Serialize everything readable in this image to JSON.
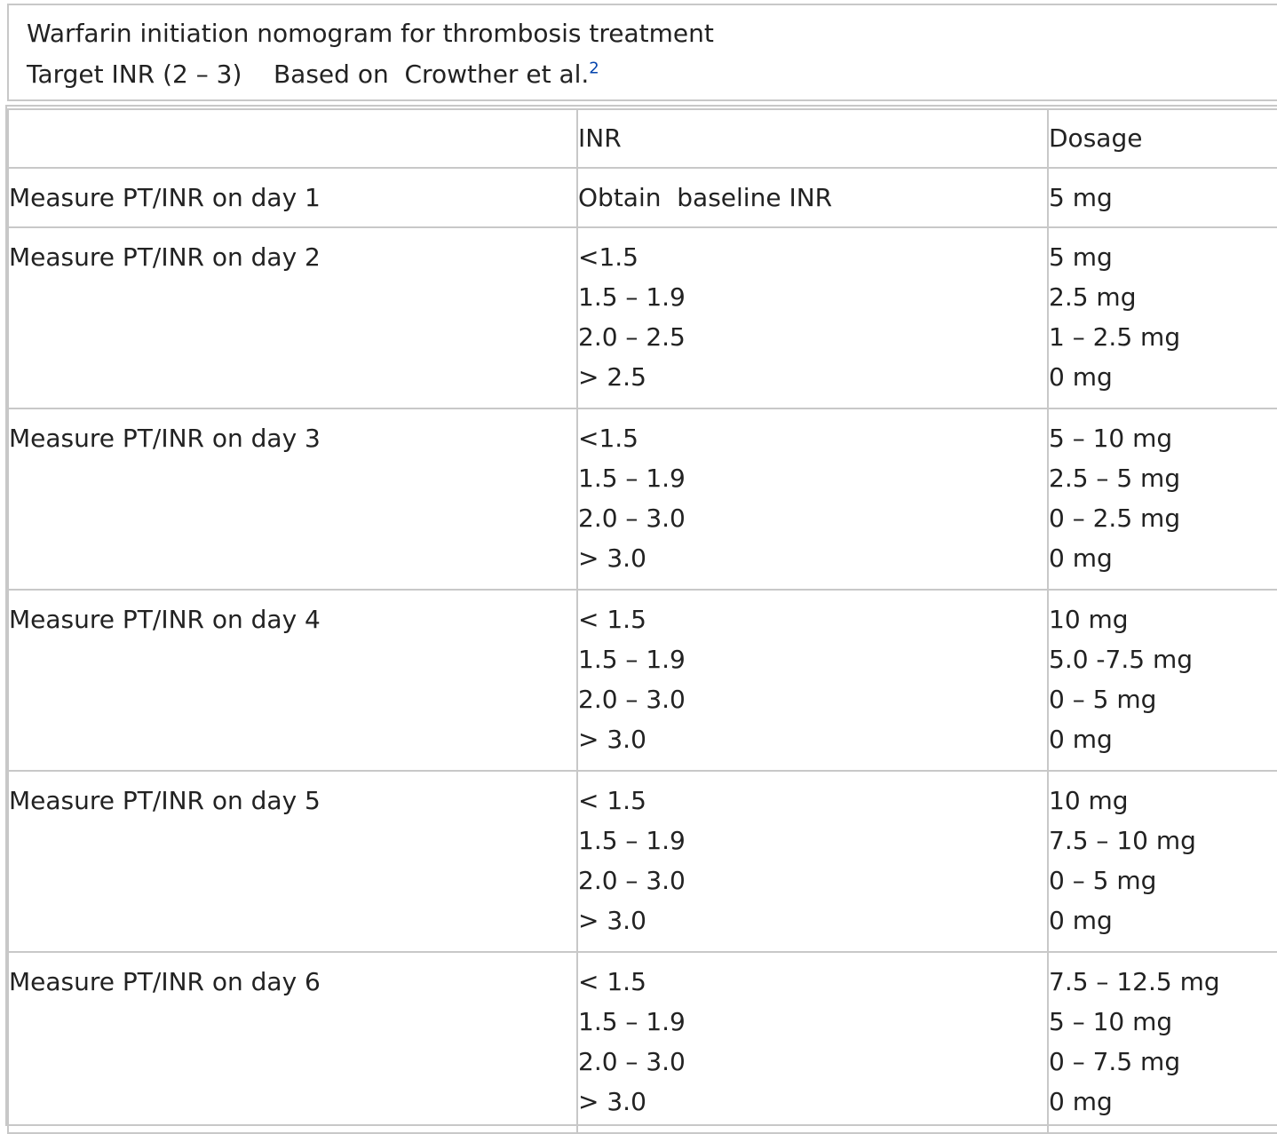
{
  "caption": {
    "title": "Warfarin initiation nomogram for thrombosis treatment",
    "subtitle": "Target INR (2 – 3)    Based on  Crowther et al.",
    "citation_mark": "2"
  },
  "table": {
    "headers": {
      "step": "",
      "inr": "INR",
      "dosage": "Dosage"
    },
    "rows": [
      {
        "step": "Measure PT/INR on day 1",
        "inr": [
          "Obtain  baseline INR"
        ],
        "dosage": [
          "5 mg"
        ]
      },
      {
        "step": "Measure PT/INR on day 2",
        "inr": [
          "<1.5",
          "1.5 – 1.9",
          "2.0 – 2.5",
          "> 2.5"
        ],
        "dosage": [
          "5 mg",
          "2.5 mg",
          "1 – 2.5 mg",
          "0 mg"
        ]
      },
      {
        "step": "Measure PT/INR on day 3",
        "inr": [
          "<1.5",
          "1.5 – 1.9",
          "2.0 – 3.0",
          "> 3.0"
        ],
        "dosage": [
          "5 – 10 mg",
          "2.5 – 5 mg",
          "0 – 2.5 mg",
          "0 mg"
        ]
      },
      {
        "step": "Measure PT/INR on day 4",
        "inr": [
          "< 1.5",
          "1.5 – 1.9",
          "2.0 – 3.0",
          "> 3.0"
        ],
        "dosage": [
          "10 mg",
          "5.0 -7.5 mg",
          "0 – 5 mg",
          "0 mg"
        ]
      },
      {
        "step": "Measure PT/INR on day 5",
        "inr": [
          "< 1.5",
          "1.5 – 1.9",
          "2.0 – 3.0",
          "> 3.0"
        ],
        "dosage": [
          "10 mg",
          "7.5 – 10 mg",
          "0 – 5 mg",
          "0 mg"
        ]
      },
      {
        "step": "Measure PT/INR on day 6",
        "inr": [
          "< 1.5",
          "1.5 – 1.9",
          "2.0 – 3.0",
          "> 3.0"
        ],
        "dosage": [
          "7.5 – 12.5 mg",
          "5 – 10 mg",
          "0 – 7.5 mg",
          "0 mg"
        ]
      }
    ]
  },
  "colors": {
    "border": "#c8c8c8",
    "text": "#222222",
    "link": "#0645ad"
  }
}
